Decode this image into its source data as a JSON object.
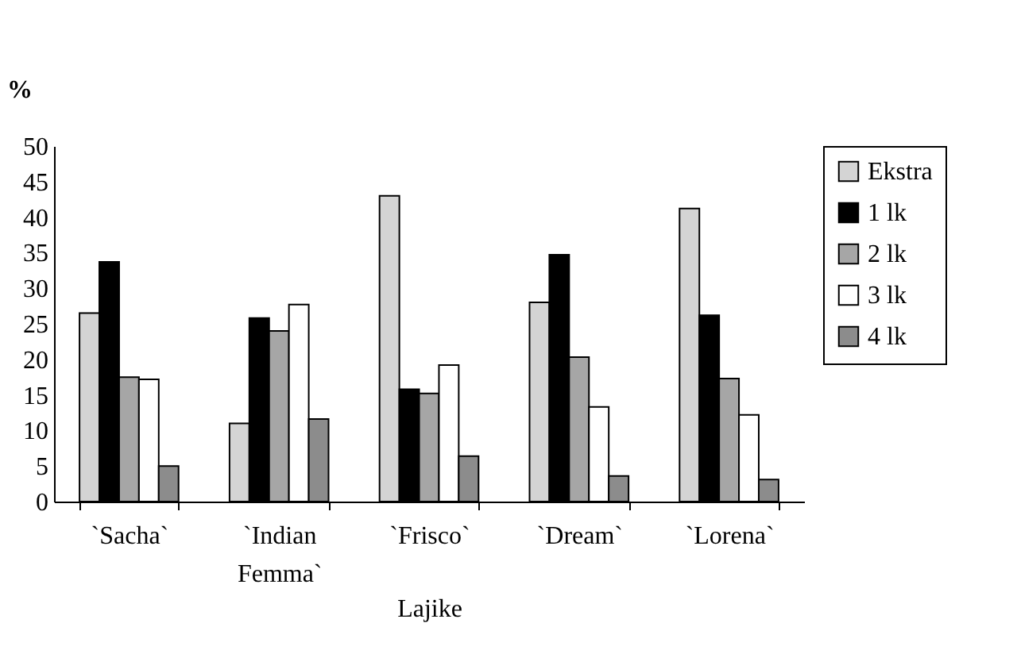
{
  "chart_data": {
    "type": "bar",
    "xlabel": "Lajike",
    "ylabel": "%",
    "categories": [
      "`Sacha`",
      "`Indian Femma`",
      "`Frisco`",
      "`Dream`",
      "`Lorena`"
    ],
    "series": [
      {
        "name": "Ekstra",
        "color": "#d4d4d4",
        "values": [
          26.5,
          11,
          43,
          28,
          41.2
        ]
      },
      {
        "name": "1 lk",
        "color": "#000000",
        "values": [
          33.7,
          25.8,
          15.8,
          34.7,
          26.2
        ]
      },
      {
        "name": "2 lk",
        "color": "#a6a6a6",
        "values": [
          17.5,
          24,
          15.2,
          20.3,
          17.3
        ]
      },
      {
        "name": "3 lk",
        "color": "#ffffff",
        "values": [
          17.2,
          27.7,
          19.2,
          13.3,
          12.2
        ]
      },
      {
        "name": "4 lk",
        "color": "#8c8c8c",
        "values": [
          5,
          11.6,
          6.4,
          3.6,
          3.1
        ]
      }
    ],
    "ylim": [
      0,
      50
    ],
    "yticks": [
      0,
      5,
      10,
      15,
      20,
      25,
      30,
      35,
      40,
      45,
      50
    ],
    "grid": false,
    "legend": "right"
  }
}
